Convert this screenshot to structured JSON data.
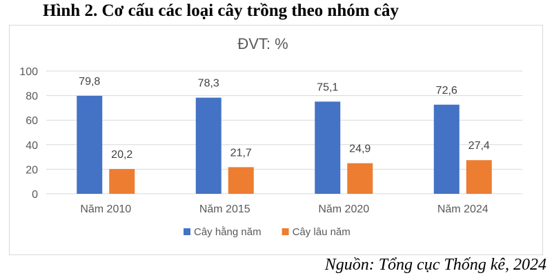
{
  "figure": {
    "title": "Hình 2. Cơ cấu các loại cây trồng theo nhóm cây",
    "source": "Nguồn: Tổng cục Thống kê, 2024"
  },
  "chart_data": {
    "type": "bar",
    "title": "ĐVT: %",
    "categories": [
      "Năm 2010",
      "Năm 2015",
      "Năm 2020",
      "Năm 2024"
    ],
    "series": [
      {
        "name": "Cây hằng năm",
        "values": [
          79.8,
          78.3,
          75.1,
          72.6
        ],
        "labels": [
          "79,8",
          "78,3",
          "75,1",
          "72,6"
        ],
        "color": "#4472c4"
      },
      {
        "name": "Cây lâu năm",
        "values": [
          20.2,
          21.7,
          24.9,
          27.4
        ],
        "labels": [
          "20,2",
          "21,7",
          "24,9",
          "27,4"
        ],
        "color": "#ed7d31"
      }
    ],
    "ylim": [
      0,
      100
    ],
    "yticks": [
      0,
      20,
      40,
      60,
      80,
      100
    ],
    "grid": true,
    "legend": "bottom",
    "colors": {
      "gridline": "#d9d9d9",
      "axis_text": "#595959",
      "title_text": "#595959"
    }
  }
}
